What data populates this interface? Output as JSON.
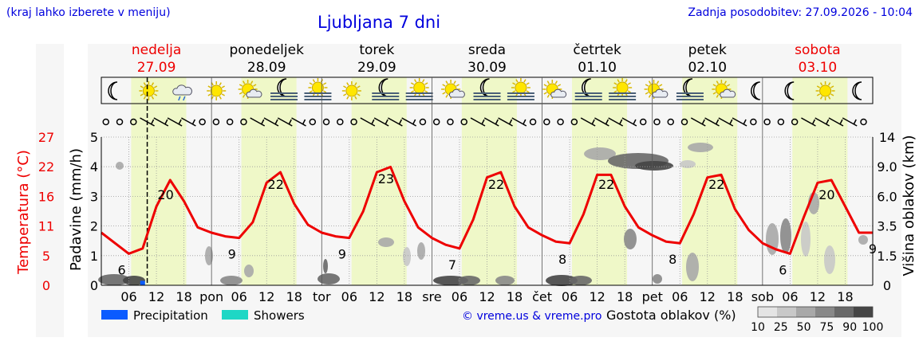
{
  "header": {
    "region_note": "(kraj lahko izberete v meniju)",
    "title": "Ljubljana 7 dni",
    "updated": "Zadnja posodobitev: 27.09.2026 - 10:04"
  },
  "days": [
    {
      "name": "nedelja",
      "date": "27.09",
      "weekend": true
    },
    {
      "name": "ponedeljek",
      "date": "28.09",
      "weekend": false
    },
    {
      "name": "torek",
      "date": "29.09",
      "weekend": false
    },
    {
      "name": "sreda",
      "date": "30.09",
      "weekend": false
    },
    {
      "name": "četrtek",
      "date": "01.10",
      "weekend": false
    },
    {
      "name": "petek",
      "date": "02.10",
      "weekend": false
    },
    {
      "name": "sobota",
      "date": "03.10",
      "weekend": true
    }
  ],
  "colors": {
    "temperature": "#ee0000",
    "precipitation": "#0a5bff",
    "showers": "#1ed7c5",
    "daylight": "#eff8c8",
    "weekend_text": "#ee0000",
    "link_text": "#0000dd"
  },
  "weather_icons": [
    "moon",
    "sun",
    "cloud-rain",
    "sun",
    "sun-cloud",
    "fog-moon",
    "fog-sun",
    "sun",
    "fog-moon",
    "fog-sun",
    "sun-cloud",
    "fog-moon",
    "fog-sun",
    "sun-cloud",
    "fog-moon",
    "fog-sun",
    "sun-cloud",
    "fog-moon",
    "sun-cloud",
    "moon",
    "moon",
    "sun",
    "moon"
  ],
  "chart_data": {
    "type": "line",
    "xlabel": "",
    "x_ticks": [
      "06",
      "12",
      "18",
      "pon",
      "06",
      "12",
      "18",
      "tor",
      "06",
      "12",
      "18",
      "sre",
      "06",
      "12",
      "18",
      "čet",
      "06",
      "12",
      "18",
      "pet",
      "06",
      "12",
      "18",
      "sob",
      "06",
      "12",
      "18"
    ],
    "ylabel_temperature": "Temperatura (°C)",
    "temperature_ticks": [
      "27",
      "22",
      "16",
      "11",
      "5",
      "0"
    ],
    "ylabel_precipitation": "Padavine (mm/h)",
    "precipitation_ticks": [
      "5",
      "4",
      "3",
      "2",
      "1",
      "0"
    ],
    "ylim_precipitation": [
      0,
      5
    ],
    "ylabel_cloud_height": "Višina oblakov (km)",
    "cloud_height_ticks": [
      "14",
      "9.0",
      "6.0",
      "3.5",
      "1.5",
      "0"
    ],
    "series": [
      {
        "name": "Temperatura (°C)",
        "axis": "temperature",
        "points_day_hour": [
          [
            0,
            0,
            10.0
          ],
          [
            0,
            6,
            6.0
          ],
          [
            0,
            9,
            7.0
          ],
          [
            0,
            12,
            15.0
          ],
          [
            0,
            15,
            20.0
          ],
          [
            0,
            18,
            16.0
          ],
          [
            0,
            21,
            11.0
          ],
          [
            1,
            0,
            10.0
          ],
          [
            1,
            3,
            9.3
          ],
          [
            1,
            6,
            9.0
          ],
          [
            1,
            9,
            12.0
          ],
          [
            1,
            12,
            19.5
          ],
          [
            1,
            15,
            21.5
          ],
          [
            1,
            18,
            15.5
          ],
          [
            1,
            21,
            11.5
          ],
          [
            2,
            0,
            10.0
          ],
          [
            2,
            3,
            9.3
          ],
          [
            2,
            6,
            9.0
          ],
          [
            2,
            9,
            14.0
          ],
          [
            2,
            12,
            21.5
          ],
          [
            2,
            15,
            22.5
          ],
          [
            2,
            18,
            16.0
          ],
          [
            2,
            21,
            11.0
          ],
          [
            3,
            0,
            9.0
          ],
          [
            3,
            3,
            7.7
          ],
          [
            3,
            6,
            7.0
          ],
          [
            3,
            9,
            12.5
          ],
          [
            3,
            12,
            20.5
          ],
          [
            3,
            15,
            21.5
          ],
          [
            3,
            18,
            15.0
          ],
          [
            3,
            21,
            11.0
          ],
          [
            4,
            0,
            9.5
          ],
          [
            4,
            3,
            8.3
          ],
          [
            4,
            6,
            8.0
          ],
          [
            4,
            9,
            13.5
          ],
          [
            4,
            12,
            21.0
          ],
          [
            4,
            15,
            21.0
          ],
          [
            4,
            18,
            15.0
          ],
          [
            4,
            21,
            11.0
          ],
          [
            5,
            0,
            9.5
          ],
          [
            5,
            3,
            8.3
          ],
          [
            5,
            6,
            8.0
          ],
          [
            5,
            9,
            13.5
          ],
          [
            5,
            12,
            20.5
          ],
          [
            5,
            15,
            21.0
          ],
          [
            5,
            18,
            14.5
          ],
          [
            5,
            21,
            10.5
          ],
          [
            6,
            0,
            8.0
          ],
          [
            6,
            3,
            6.8
          ],
          [
            6,
            6,
            6.0
          ],
          [
            6,
            9,
            13.0
          ],
          [
            6,
            12,
            19.5
          ],
          [
            6,
            15,
            20.0
          ],
          [
            6,
            18,
            15.0
          ],
          [
            6,
            21,
            10.0
          ]
        ],
        "min_labels": [
          6,
          9,
          9,
          7,
          8,
          8,
          6
        ],
        "max_labels": [
          20,
          22,
          23,
          22,
          22,
          22,
          20
        ],
        "last_label": 9
      }
    ],
    "precipitation_bars": [
      {
        "day": 0,
        "hour": 9,
        "value": 0.15,
        "kind": "Precipitation"
      }
    ],
    "cloud_density_legend": {
      "label": "Gostota oblakov (%)",
      "steps": [
        "10",
        "25",
        "50",
        "75",
        "90",
        "100"
      ],
      "colors": [
        "#e4e4e4",
        "#c8c8c8",
        "#a8a8a8",
        "#888888",
        "#686868",
        "#454545"
      ]
    },
    "legend": [
      {
        "name": "Precipitation",
        "color": "#0a5bff"
      },
      {
        "name": "Showers",
        "color": "#1ed7c5"
      }
    ],
    "grid": true,
    "current_time": {
      "day": 0,
      "hour": 10
    }
  },
  "footer": {
    "credit": "© vreme.us & vreme.pro"
  }
}
